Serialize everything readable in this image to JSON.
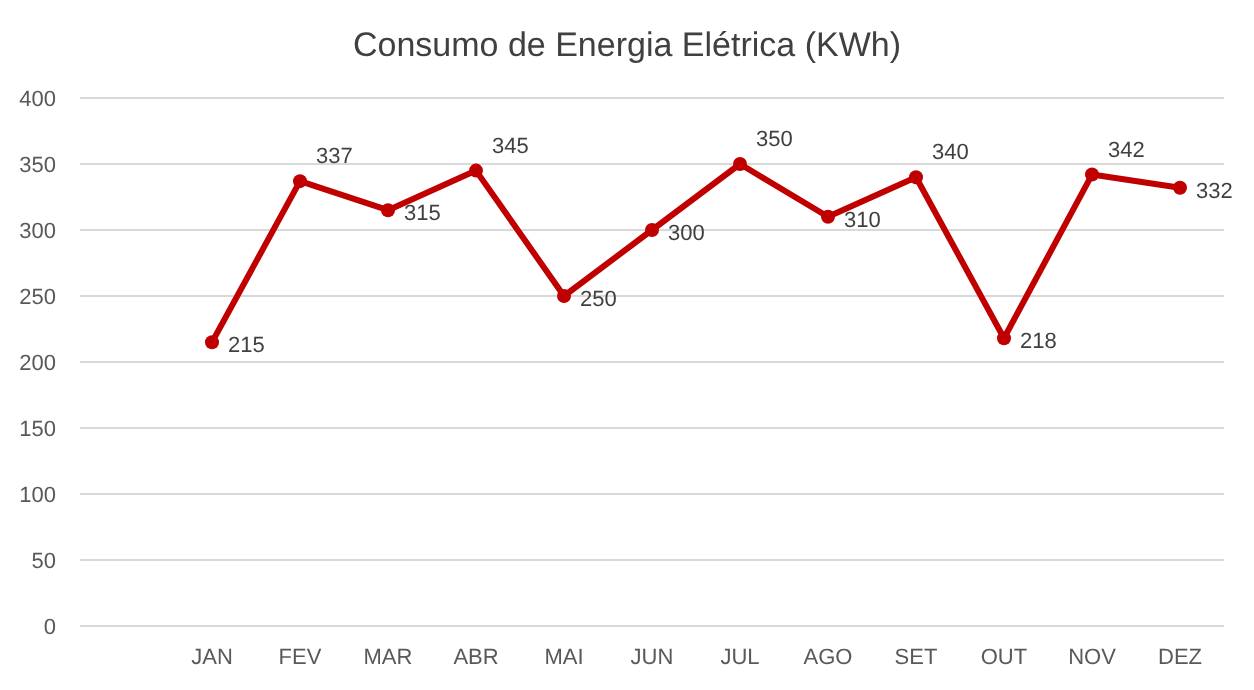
{
  "chart_data": {
    "type": "line",
    "title": "Consumo de Energia Elétrica (KWh)",
    "categories": [
      null,
      "JAN",
      "FEV",
      "MAR",
      "ABR",
      "MAI",
      "JUN",
      "JUL",
      "AGO",
      "SET",
      "OUT",
      "NOV",
      "DEZ"
    ],
    "series": [
      {
        "color": "#c00000",
        "values": [
          null,
          215,
          337,
          315,
          345,
          250,
          300,
          350,
          310,
          340,
          218,
          342,
          332
        ]
      }
    ],
    "ylim": [
      0,
      400
    ],
    "yticks": [
      0,
      50,
      100,
      150,
      200,
      250,
      300,
      350,
      400
    ],
    "grid": "y",
    "marker": "circle",
    "line_style": "solid",
    "data_labels": true
  }
}
